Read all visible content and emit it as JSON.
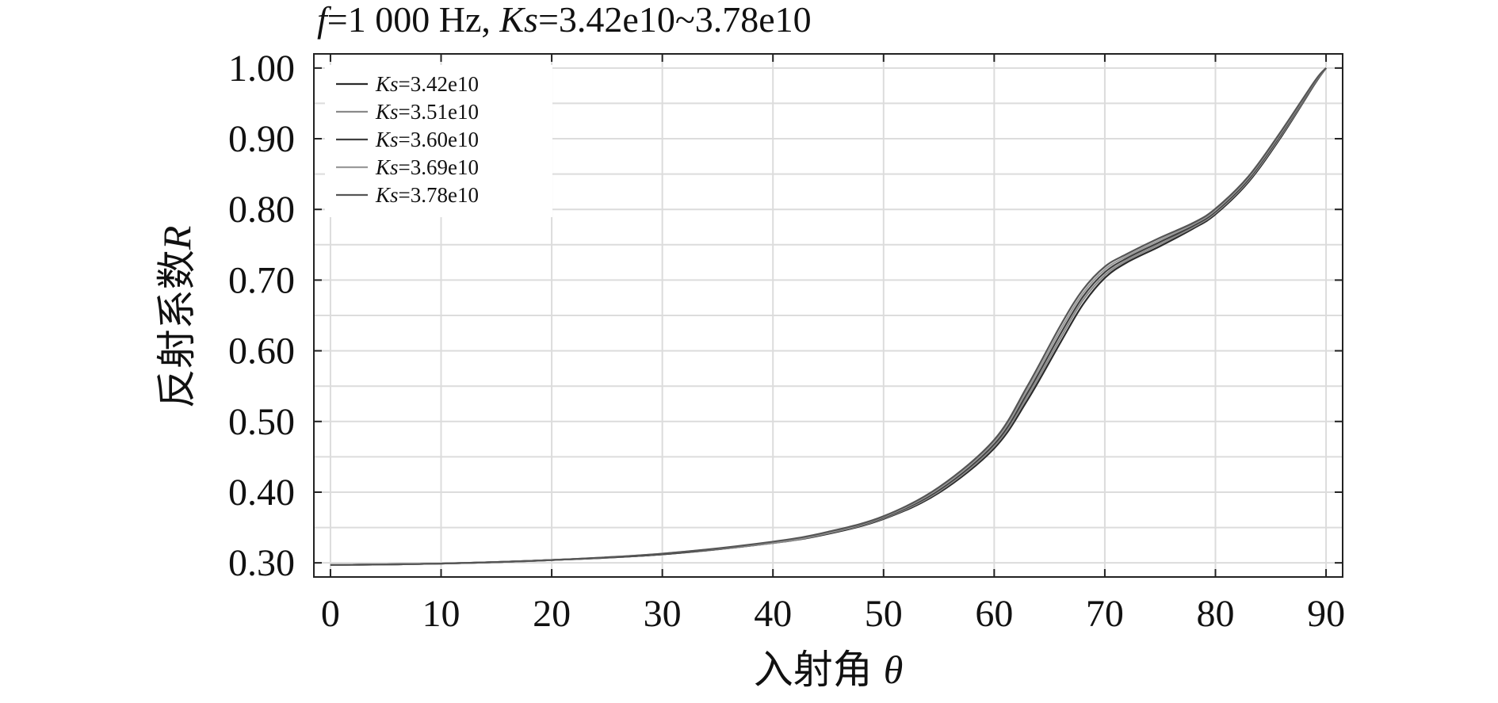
{
  "chart_data": {
    "type": "line",
    "title_prefix": "f",
    "title_main": "=1 000 Hz, ",
    "title_ks": "Ks",
    "title_suffix": "=3.42e10~3.78e10",
    "xlabel": "入射角",
    "xlabel_symbol": "θ",
    "ylabel": "反射系数",
    "ylabel_symbol": "R",
    "xlim": [
      -1.5,
      91.5
    ],
    "ylim": [
      0.28,
      1.02
    ],
    "x_ticks": [
      0,
      10,
      20,
      30,
      40,
      50,
      60,
      70,
      80,
      90
    ],
    "x_tick_labels": [
      "0",
      "10",
      "20",
      "30",
      "40",
      "50",
      "60",
      "70",
      "80",
      "90"
    ],
    "y_ticks": [
      0.3,
      0.4,
      0.5,
      0.6,
      0.7,
      0.8,
      0.9,
      1.0
    ],
    "y_tick_labels": [
      "0.30",
      "0.40",
      "0.50",
      "0.60",
      "0.70",
      "0.80",
      "0.90",
      "1.00"
    ],
    "y_minor_step": 0.05,
    "grid": true,
    "legend_position": "top-left",
    "legend_prefix": "Ks",
    "x": [
      0,
      10,
      20,
      30,
      40,
      45,
      50,
      55,
      60,
      63,
      66,
      68,
      70,
      72,
      75,
      78,
      80,
      83,
      86,
      89,
      90
    ],
    "series": [
      {
        "name": "=3.42e10",
        "color": "#2b2b2b",
        "values": [
          0.297,
          0.299,
          0.304,
          0.312,
          0.328,
          0.341,
          0.362,
          0.399,
          0.462,
          0.53,
          0.612,
          0.665,
          0.703,
          0.725,
          0.748,
          0.773,
          0.793,
          0.839,
          0.904,
          0.978,
          1.0
        ]
      },
      {
        "name": "=3.51e10",
        "color": "#8a8a8a",
        "values": [
          0.297,
          0.299,
          0.304,
          0.312,
          0.328,
          0.342,
          0.363,
          0.401,
          0.465,
          0.535,
          0.618,
          0.671,
          0.707,
          0.728,
          0.751,
          0.775,
          0.795,
          0.841,
          0.906,
          0.979,
          1.0
        ]
      },
      {
        "name": "=3.60e10",
        "color": "#404040",
        "values": [
          0.297,
          0.299,
          0.304,
          0.312,
          0.329,
          0.343,
          0.364,
          0.403,
          0.468,
          0.54,
          0.624,
          0.676,
          0.711,
          0.731,
          0.754,
          0.777,
          0.797,
          0.843,
          0.908,
          0.98,
          1.0
        ]
      },
      {
        "name": "=3.69e10",
        "color": "#9a9a9a",
        "values": [
          0.297,
          0.299,
          0.304,
          0.313,
          0.329,
          0.343,
          0.365,
          0.405,
          0.471,
          0.545,
          0.63,
          0.681,
          0.715,
          0.734,
          0.757,
          0.779,
          0.799,
          0.845,
          0.91,
          0.981,
          1.0
        ]
      },
      {
        "name": "=3.78e10",
        "color": "#555555",
        "values": [
          0.297,
          0.299,
          0.304,
          0.313,
          0.33,
          0.344,
          0.366,
          0.407,
          0.474,
          0.55,
          0.636,
          0.686,
          0.719,
          0.737,
          0.76,
          0.781,
          0.801,
          0.847,
          0.912,
          0.982,
          1.0
        ]
      }
    ]
  }
}
